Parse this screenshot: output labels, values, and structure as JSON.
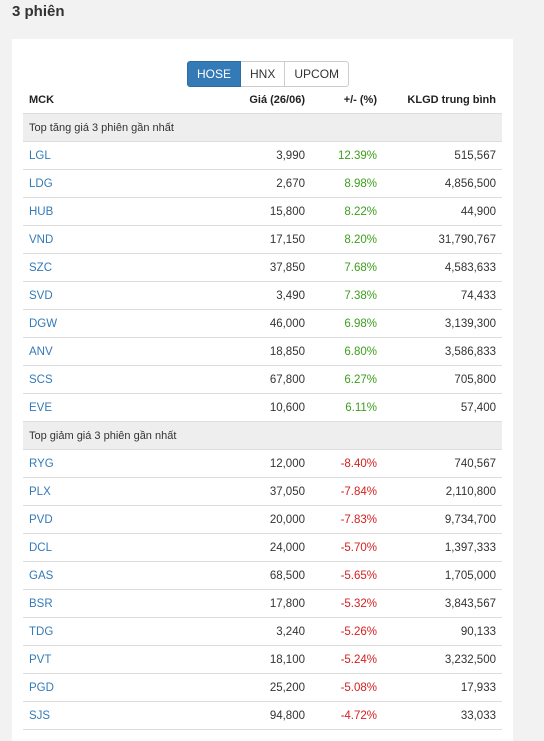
{
  "page": {
    "title": "3 phiên"
  },
  "colors": {
    "up": "#3d9e1c",
    "down": "#d62020",
    "link": "#337ab7",
    "active_tab": "#337ab7"
  },
  "tabs": [
    {
      "label": "HOSE",
      "active": true
    },
    {
      "label": "HNX",
      "active": false
    },
    {
      "label": "UPCOM",
      "active": false
    }
  ],
  "table": {
    "headers": {
      "symbol": "MCK",
      "price": "Giá (26/06)",
      "change": "+/- (%)",
      "volume": "KLGD trung bình"
    },
    "sections": [
      {
        "label": "Top tăng giá 3 phiên gần nhất",
        "direction": "up",
        "rows": [
          {
            "symbol": "LGL",
            "price": "3,990",
            "change": "12.39%",
            "volume": "515,567"
          },
          {
            "symbol": "LDG",
            "price": "2,670",
            "change": "8.98%",
            "volume": "4,856,500"
          },
          {
            "symbol": "HUB",
            "price": "15,800",
            "change": "8.22%",
            "volume": "44,900"
          },
          {
            "symbol": "VND",
            "price": "17,150",
            "change": "8.20%",
            "volume": "31,790,767"
          },
          {
            "symbol": "SZC",
            "price": "37,850",
            "change": "7.68%",
            "volume": "4,583,633"
          },
          {
            "symbol": "SVD",
            "price": "3,490",
            "change": "7.38%",
            "volume": "74,433"
          },
          {
            "symbol": "DGW",
            "price": "46,000",
            "change": "6.98%",
            "volume": "3,139,300"
          },
          {
            "symbol": "ANV",
            "price": "18,850",
            "change": "6.80%",
            "volume": "3,586,833"
          },
          {
            "symbol": "SCS",
            "price": "67,800",
            "change": "6.27%",
            "volume": "705,800"
          },
          {
            "symbol": "EVE",
            "price": "10,600",
            "change": "6.11%",
            "volume": "57,400"
          }
        ]
      },
      {
        "label": "Top giảm giá 3 phiên gần nhất",
        "direction": "down",
        "rows": [
          {
            "symbol": "RYG",
            "price": "12,000",
            "change": "-8.40%",
            "volume": "740,567"
          },
          {
            "symbol": "PLX",
            "price": "37,050",
            "change": "-7.84%",
            "volume": "2,110,800"
          },
          {
            "symbol": "PVD",
            "price": "20,000",
            "change": "-7.83%",
            "volume": "9,734,700"
          },
          {
            "symbol": "DCL",
            "price": "24,000",
            "change": "-5.70%",
            "volume": "1,397,333"
          },
          {
            "symbol": "GAS",
            "price": "68,500",
            "change": "-5.65%",
            "volume": "1,705,000"
          },
          {
            "symbol": "BSR",
            "price": "17,800",
            "change": "-5.32%",
            "volume": "3,843,567"
          },
          {
            "symbol": "TDG",
            "price": "3,240",
            "change": "-5.26%",
            "volume": "90,133"
          },
          {
            "symbol": "PVT",
            "price": "18,100",
            "change": "-5.24%",
            "volume": "3,232,500"
          },
          {
            "symbol": "PGD",
            "price": "25,200",
            "change": "-5.08%",
            "volume": "17,933"
          },
          {
            "symbol": "SJS",
            "price": "94,800",
            "change": "-4.72%",
            "volume": "33,033"
          }
        ]
      }
    ]
  }
}
